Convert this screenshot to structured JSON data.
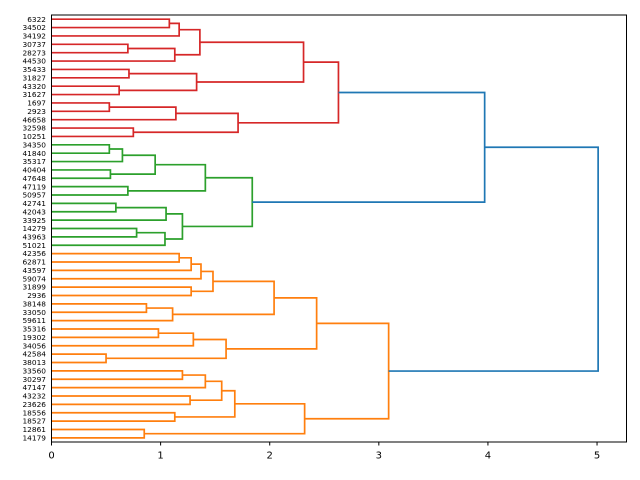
{
  "chart_data": {
    "type": "dendrogram",
    "title": "",
    "xlabel": "",
    "ylabel": "",
    "orientation": "root-right-leaves-left",
    "x_ticks": [
      0,
      1,
      2,
      3,
      4,
      5
    ],
    "xlim": [
      0,
      5.27
    ],
    "grid": false,
    "colors": {
      "C0": "#1f77b4",
      "C1": "#ff7f0e",
      "C2": "#2ca02c",
      "C3": "#d62728",
      "above_threshold_links": "C0",
      "cluster_top": "C3",
      "cluster_middle": "C2",
      "cluster_bottom": "C1",
      "axis": "#000000"
    },
    "leaf_labels": [
      "6322",
      "34502",
      "34192",
      "30737",
      "28273",
      "44530",
      "35433",
      "31827",
      "43320",
      "31627",
      "1697",
      "2923",
      "46658",
      "32598",
      "10251",
      "34350",
      "41840",
      "35317",
      "40404",
      "47648",
      "47119",
      "50957",
      "42741",
      "42043",
      "33925",
      "14279",
      "43963",
      "51021",
      "42356",
      "62871",
      "43597",
      "59074",
      "31899",
      "2936",
      "38148",
      "33050",
      "59611",
      "35316",
      "19302",
      "34056",
      "42584",
      "38013",
      "33560",
      "30297",
      "47147",
      "43232",
      "23626",
      "18556",
      "18527",
      "12861",
      "14179"
    ],
    "clusters": [
      {
        "color": "C3",
        "leaf_count": 15,
        "root_distance": 2.63
      },
      {
        "color": "C2",
        "leaf_count": 13,
        "root_distance": 1.84
      },
      {
        "color": "C1",
        "leaf_count": 23,
        "root_distance": 3.09
      }
    ],
    "root_distance": 5.01,
    "tree": {
      "d": 5.01,
      "c": "C0",
      "k": [
        {
          "d": 3.97,
          "c": "C0",
          "k": [
            {
              "d": 2.63,
              "c": "C3",
              "k": [
                {
                  "d": 2.31,
                  "c": "C3",
                  "k": [
                    {
                      "d": 1.36,
                      "c": "C3",
                      "k": [
                        {
                          "d": 1.17,
                          "c": "C3",
                          "k": [
                            {
                              "d": 1.08,
                              "c": "C3",
                              "k": [
                                0,
                                1
                              ]
                            },
                            2
                          ]
                        },
                        {
                          "d": 1.13,
                          "c": "C3",
                          "k": [
                            {
                              "d": 0.7,
                              "c": "C3",
                              "k": [
                                3,
                                4
                              ]
                            },
                            5
                          ]
                        }
                      ]
                    },
                    {
                      "d": 1.33,
                      "c": "C3",
                      "k": [
                        {
                          "d": 0.71,
                          "c": "C3",
                          "k": [
                            6,
                            7
                          ]
                        },
                        {
                          "d": 0.62,
                          "c": "C3",
                          "k": [
                            8,
                            9
                          ]
                        }
                      ]
                    }
                  ]
                },
                {
                  "d": 1.71,
                  "c": "C3",
                  "k": [
                    {
                      "d": 1.14,
                      "c": "C3",
                      "k": [
                        {
                          "d": 0.53,
                          "c": "C3",
                          "k": [
                            10,
                            11
                          ]
                        },
                        12
                      ]
                    },
                    {
                      "d": 0.75,
                      "c": "C3",
                      "k": [
                        13,
                        14
                      ]
                    }
                  ]
                }
              ]
            },
            {
              "d": 1.84,
              "c": "C2",
              "k": [
                {
                  "d": 1.41,
                  "c": "C2",
                  "k": [
                    {
                      "d": 0.95,
                      "c": "C2",
                      "k": [
                        {
                          "d": 0.65,
                          "c": "C2",
                          "k": [
                            {
                              "d": 0.53,
                              "c": "C2",
                              "k": [
                                15,
                                16
                              ]
                            },
                            17
                          ]
                        },
                        {
                          "d": 0.54,
                          "c": "C2",
                          "k": [
                            18,
                            19
                          ]
                        }
                      ]
                    },
                    {
                      "d": 0.7,
                      "c": "C2",
                      "k": [
                        20,
                        21
                      ]
                    }
                  ]
                },
                {
                  "d": 1.2,
                  "c": "C2",
                  "k": [
                    {
                      "d": 1.05,
                      "c": "C2",
                      "k": [
                        {
                          "d": 0.59,
                          "c": "C2",
                          "k": [
                            22,
                            23
                          ]
                        },
                        24
                      ]
                    },
                    {
                      "d": 1.04,
                      "c": "C2",
                      "k": [
                        {
                          "d": 0.78,
                          "c": "C2",
                          "k": [
                            25,
                            26
                          ]
                        },
                        27
                      ]
                    }
                  ]
                }
              ]
            }
          ]
        },
        {
          "d": 3.09,
          "c": "C1",
          "k": [
            {
              "d": 2.43,
              "c": "C1",
              "k": [
                {
                  "d": 2.04,
                  "c": "C1",
                  "k": [
                    {
                      "d": 1.48,
                      "c": "C1",
                      "k": [
                        {
                          "d": 1.37,
                          "c": "C1",
                          "k": [
                            {
                              "d": 1.28,
                              "c": "C1",
                              "k": [
                                {
                                  "d": 1.17,
                                  "c": "C1",
                                  "k": [
                                    28,
                                    29
                                  ]
                                },
                                30
                              ]
                            },
                            31
                          ]
                        },
                        {
                          "d": 1.28,
                          "c": "C1",
                          "k": [
                            32,
                            33
                          ]
                        }
                      ]
                    },
                    {
                      "d": 1.11,
                      "c": "C1",
                      "k": [
                        {
                          "d": 0.87,
                          "c": "C1",
                          "k": [
                            34,
                            35
                          ]
                        },
                        36
                      ]
                    }
                  ]
                },
                {
                  "d": 1.6,
                  "c": "C1",
                  "k": [
                    {
                      "d": 1.3,
                      "c": "C1",
                      "k": [
                        {
                          "d": 0.98,
                          "c": "C1",
                          "k": [
                            37,
                            38
                          ]
                        },
                        39
                      ]
                    },
                    {
                      "d": 0.5,
                      "c": "C1",
                      "k": [
                        40,
                        41
                      ]
                    }
                  ]
                }
              ]
            },
            {
              "d": 2.32,
              "c": "C1",
              "k": [
                {
                  "d": 1.68,
                  "c": "C1",
                  "k": [
                    {
                      "d": 1.56,
                      "c": "C1",
                      "k": [
                        {
                          "d": 1.41,
                          "c": "C1",
                          "k": [
                            {
                              "d": 1.2,
                              "c": "C1",
                              "k": [
                                42,
                                43
                              ]
                            },
                            44
                          ]
                        },
                        {
                          "d": 1.27,
                          "c": "C1",
                          "k": [
                            45,
                            46
                          ]
                        }
                      ]
                    },
                    {
                      "d": 1.13,
                      "c": "C1",
                      "k": [
                        47,
                        48
                      ]
                    }
                  ]
                },
                {
                  "d": 0.85,
                  "c": "C1",
                  "k": [
                    49,
                    50
                  ]
                }
              ]
            }
          ]
        }
      ]
    }
  }
}
